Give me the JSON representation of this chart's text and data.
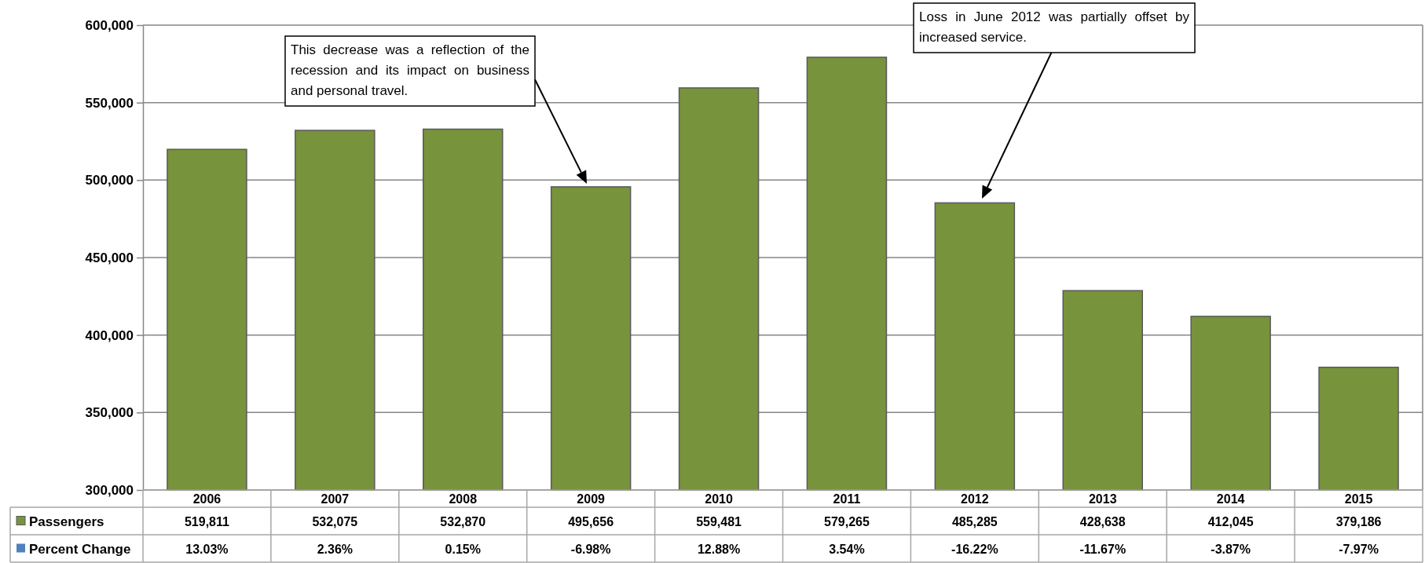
{
  "chart_data": {
    "type": "bar",
    "categories": [
      "2006",
      "2007",
      "2008",
      "2009",
      "2010",
      "2011",
      "2012",
      "2013",
      "2014",
      "2015"
    ],
    "series": [
      {
        "name": "Passengers",
        "color": "#77933c",
        "values": [
          519811,
          532075,
          532870,
          495656,
          559481,
          579265,
          485285,
          428638,
          412045,
          379186
        ],
        "value_labels": [
          "519,811",
          "532,075",
          "532,870",
          "495,656",
          "559,481",
          "579,265",
          "485,285",
          "428,638",
          "412,045",
          "379,186"
        ]
      },
      {
        "name": "Percent Change",
        "type": "other",
        "color": "#4f81bd",
        "values": [
          null,
          null,
          null,
          null,
          null,
          null,
          null,
          null,
          null,
          null
        ],
        "value_labels": [
          "13.03%",
          "2.36%",
          "0.15%",
          "-6.98%",
          "12.88%",
          "3.54%",
          "-16.22%",
          "-11.67%",
          "-3.87%",
          "-7.97%"
        ]
      }
    ],
    "ylim": [
      300000,
      600000
    ],
    "yticks": [
      {
        "value": 300000,
        "label": "300,000"
      },
      {
        "value": 350000,
        "label": "350,000"
      },
      {
        "value": 400000,
        "label": "400,000"
      },
      {
        "value": 450000,
        "label": "450,000"
      },
      {
        "value": 500000,
        "label": "500,000"
      },
      {
        "value": 550000,
        "label": "550,000"
      },
      {
        "value": 600000,
        "label": "600,000"
      }
    ],
    "grid": "y",
    "legend": "bottom",
    "annotations": [
      "This decrease was a reflection of the recession and its impact on business and personal travel.",
      "Loss in June 2012 was partially offset by increased service."
    ]
  }
}
